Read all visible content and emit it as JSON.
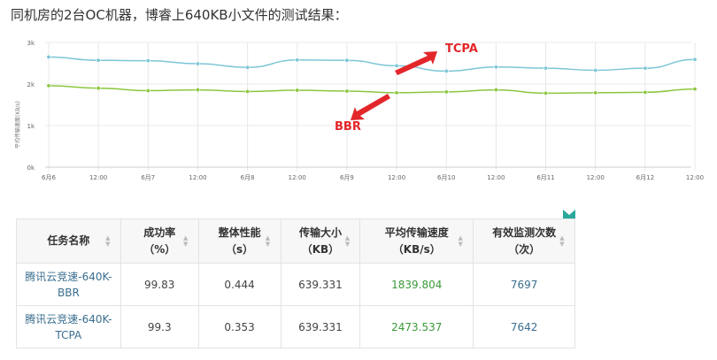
{
  "heading": "同机房的2台OC机器，博睿上640KB小文件的测试结果：",
  "chart_data": {
    "type": "line",
    "ylabel": "平均传输速度(KB/s)",
    "ylim": [
      0,
      3000
    ],
    "yticks": [
      "0k",
      "1k",
      "2k",
      "3k"
    ],
    "yticks_values": [
      0,
      1000,
      2000,
      3000
    ],
    "xtick_labels": [
      "6月6",
      "12:00",
      "6月7",
      "12:00",
      "6月8",
      "12:00",
      "6月9",
      "12:00",
      "6月10",
      "12:00",
      "6月11",
      "12:00",
      "6月12",
      "12:00"
    ],
    "grid": true,
    "series": [
      {
        "name": "TCPA",
        "color": "#7dc6d6",
        "values": [
          2650,
          2570,
          2560,
          2490,
          2400,
          2580,
          2570,
          2440,
          2310,
          2410,
          2380,
          2330,
          2380,
          2590
        ]
      },
      {
        "name": "BBR",
        "color": "#8cc63e",
        "values": [
          1960,
          1900,
          1840,
          1860,
          1820,
          1850,
          1830,
          1790,
          1810,
          1860,
          1780,
          1790,
          1800,
          1880
        ]
      }
    ],
    "annotations": [
      {
        "text": "TCPA",
        "color": "#e3262a"
      },
      {
        "text": "BBR",
        "color": "#e3262a"
      }
    ]
  },
  "table": {
    "headers": [
      {
        "line1": "任务名称",
        "line2": ""
      },
      {
        "line1": "成功率",
        "line2": "（%）"
      },
      {
        "line1": "整体性能",
        "line2": "（s）"
      },
      {
        "line1": "传输大小",
        "line2": "（KB）"
      },
      {
        "line1": "平均传输速度",
        "line2": "（KB/s）"
      },
      {
        "line1": "有效监测次数",
        "line2": "（次）"
      }
    ],
    "rows": [
      {
        "name_line1": "腾讯云竞速-640K-",
        "name_line2": "BBR",
        "success": "99.83",
        "perf": "0.444",
        "size": "639.331",
        "speed": "1839.804",
        "count": "7697"
      },
      {
        "name_line1": "腾讯云竞速-640K-",
        "name_line2": "TCPA",
        "success": "99.3",
        "perf": "0.353",
        "size": "639.331",
        "speed": "2473.537",
        "count": "7642"
      }
    ]
  },
  "colors": {
    "grid": "#e8e8e8",
    "axis_text": "#666666",
    "arrow": "#e3262a",
    "corner_icon": "#2aa89a"
  },
  "icons": [
    "sort-icon",
    "corner-flag-icon"
  ]
}
